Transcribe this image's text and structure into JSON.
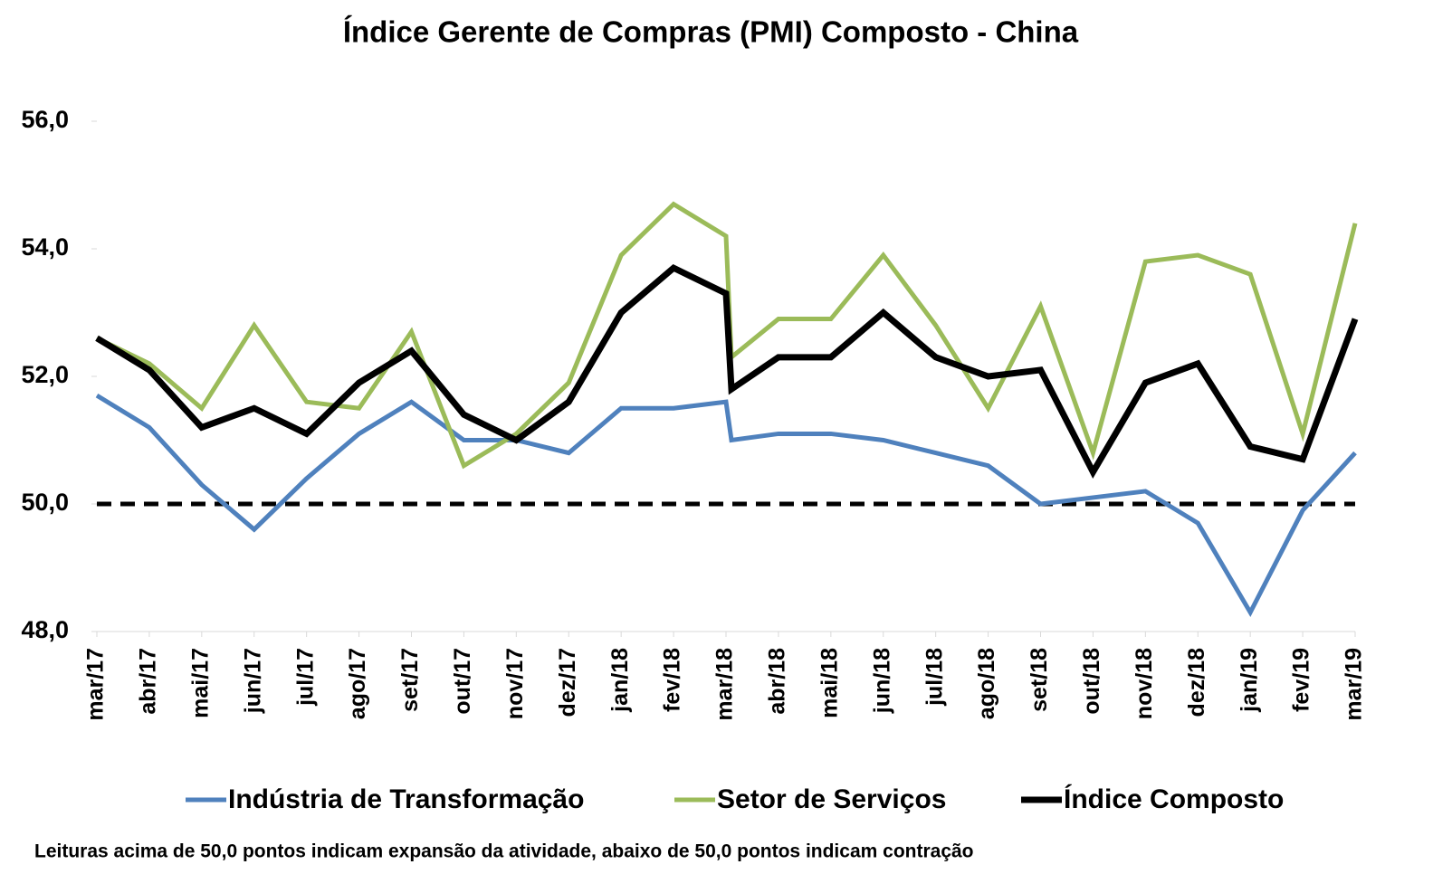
{
  "chart_data": {
    "type": "line",
    "title": "Índice Gerente de Compras (PMI) Composto - China",
    "note": "Leituras acima de 50,0 pontos indicam expansão da atividade, abaixo de 50,0 pontos indicam contração",
    "categories": [
      "mar/17",
      "abr/17",
      "mai/17",
      "jun/17",
      "jul/17",
      "ago/17",
      "set/17",
      "out/17",
      "nov/17",
      "dez/17",
      "jan/18",
      "fev/18",
      "mar/18",
      null,
      "abr/18",
      "mai/18",
      "jun/18",
      "jul/18",
      "ago/18",
      "set/18",
      "out/18",
      "nov/18",
      "dez/18",
      "jan/19",
      "fev/19",
      "mar/19"
    ],
    "series": [
      {
        "name": "Indústria de Transformação",
        "color": "#4f81bd",
        "values": [
          51.7,
          51.2,
          50.3,
          49.6,
          50.4,
          51.1,
          51.6,
          51.0,
          51.0,
          50.8,
          51.5,
          51.5,
          51.6,
          51.0,
          51.1,
          51.1,
          51.0,
          50.8,
          50.6,
          50.0,
          50.1,
          50.2,
          49.7,
          48.3,
          49.9,
          50.8
        ]
      },
      {
        "name": "Setor de Serviços",
        "color": "#9bbb59",
        "values": [
          52.6,
          52.2,
          51.5,
          52.8,
          51.6,
          51.5,
          52.7,
          50.6,
          51.1,
          51.9,
          53.9,
          54.7,
          54.2,
          52.3,
          52.9,
          52.9,
          53.9,
          52.8,
          51.5,
          53.1,
          50.8,
          53.8,
          53.9,
          53.6,
          51.1,
          54.4
        ]
      },
      {
        "name": "Índice Composto",
        "color": "#000000",
        "values": [
          52.6,
          52.1,
          51.2,
          51.5,
          51.1,
          51.9,
          52.4,
          51.4,
          51.0,
          51.6,
          53.0,
          53.7,
          53.3,
          51.8,
          52.3,
          52.3,
          53.0,
          52.3,
          52.0,
          52.1,
          50.5,
          51.9,
          52.2,
          50.9,
          50.7,
          52.9
        ]
      }
    ],
    "reference_line": 50,
    "ylim": [
      48,
      56
    ],
    "yticks": [
      {
        "value": 48,
        "label": "48,0"
      },
      {
        "value": 50,
        "label": "50,0"
      },
      {
        "value": 52,
        "label": "52,0"
      },
      {
        "value": 54,
        "label": "54,0"
      },
      {
        "value": 56,
        "label": "56,0"
      }
    ],
    "grid": false,
    "legend": "bottom"
  }
}
